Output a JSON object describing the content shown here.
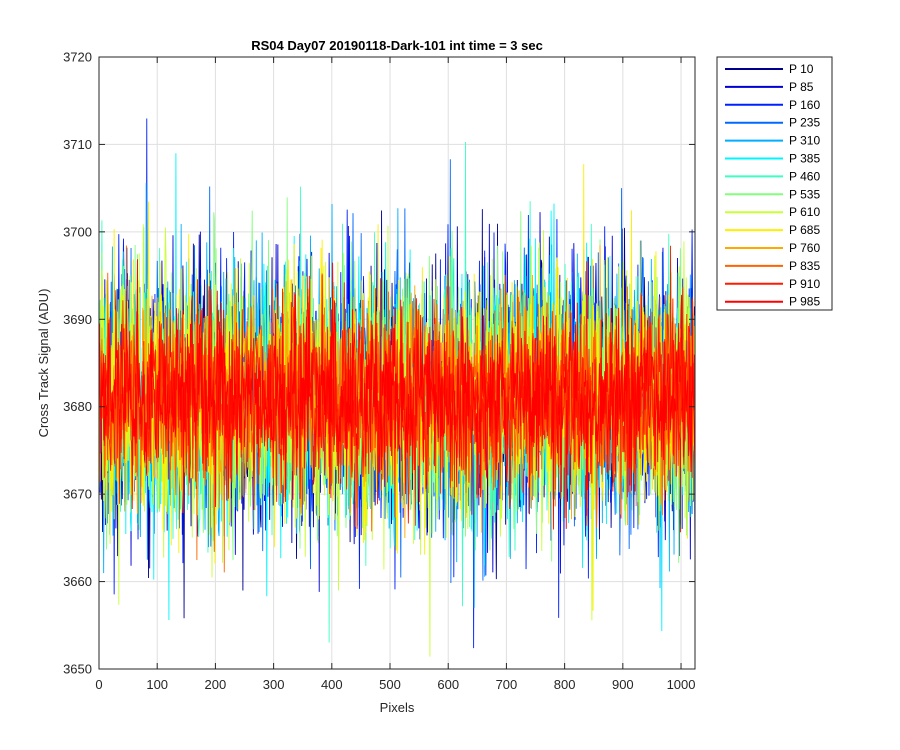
{
  "chart_data": {
    "type": "line",
    "title": "RS04 Day07 20190118-Dark-101 int time = 3 sec",
    "xlabel": "Pixels",
    "ylabel": "Cross Track Signal (ADU)",
    "xlim": [
      0,
      1024
    ],
    "ylim": [
      3650,
      3720
    ],
    "xticks": [
      0,
      100,
      200,
      300,
      400,
      500,
      600,
      700,
      800,
      900,
      1000
    ],
    "yticks": [
      3650,
      3660,
      3670,
      3680,
      3690,
      3700,
      3710,
      3720
    ],
    "grid": true,
    "legend_position": "outside-top-right",
    "series_summary": {
      "points_per_series": 1024,
      "approx_mean": 3681,
      "approx_min": 3650,
      "approx_max": 3715
    },
    "series": [
      {
        "name": "P 10",
        "color": "#00008f"
      },
      {
        "name": "P 85",
        "color": "#0000d6"
      },
      {
        "name": "P 160",
        "color": "#0021ff"
      },
      {
        "name": "P 235",
        "color": "#0068ff"
      },
      {
        "name": "P 310",
        "color": "#00aeff"
      },
      {
        "name": "P 385",
        "color": "#00f5ff"
      },
      {
        "name": "P 460",
        "color": "#3cffc3"
      },
      {
        "name": "P 535",
        "color": "#83ff7c"
      },
      {
        "name": "P 610",
        "color": "#c9ff36"
      },
      {
        "name": "P 685",
        "color": "#ffef00"
      },
      {
        "name": "P 760",
        "color": "#ffa800"
      },
      {
        "name": "P 835",
        "color": "#ff6200"
      },
      {
        "name": "P 910",
        "color": "#ff1b00"
      },
      {
        "name": "P 985",
        "color": "#ff0000"
      }
    ]
  }
}
